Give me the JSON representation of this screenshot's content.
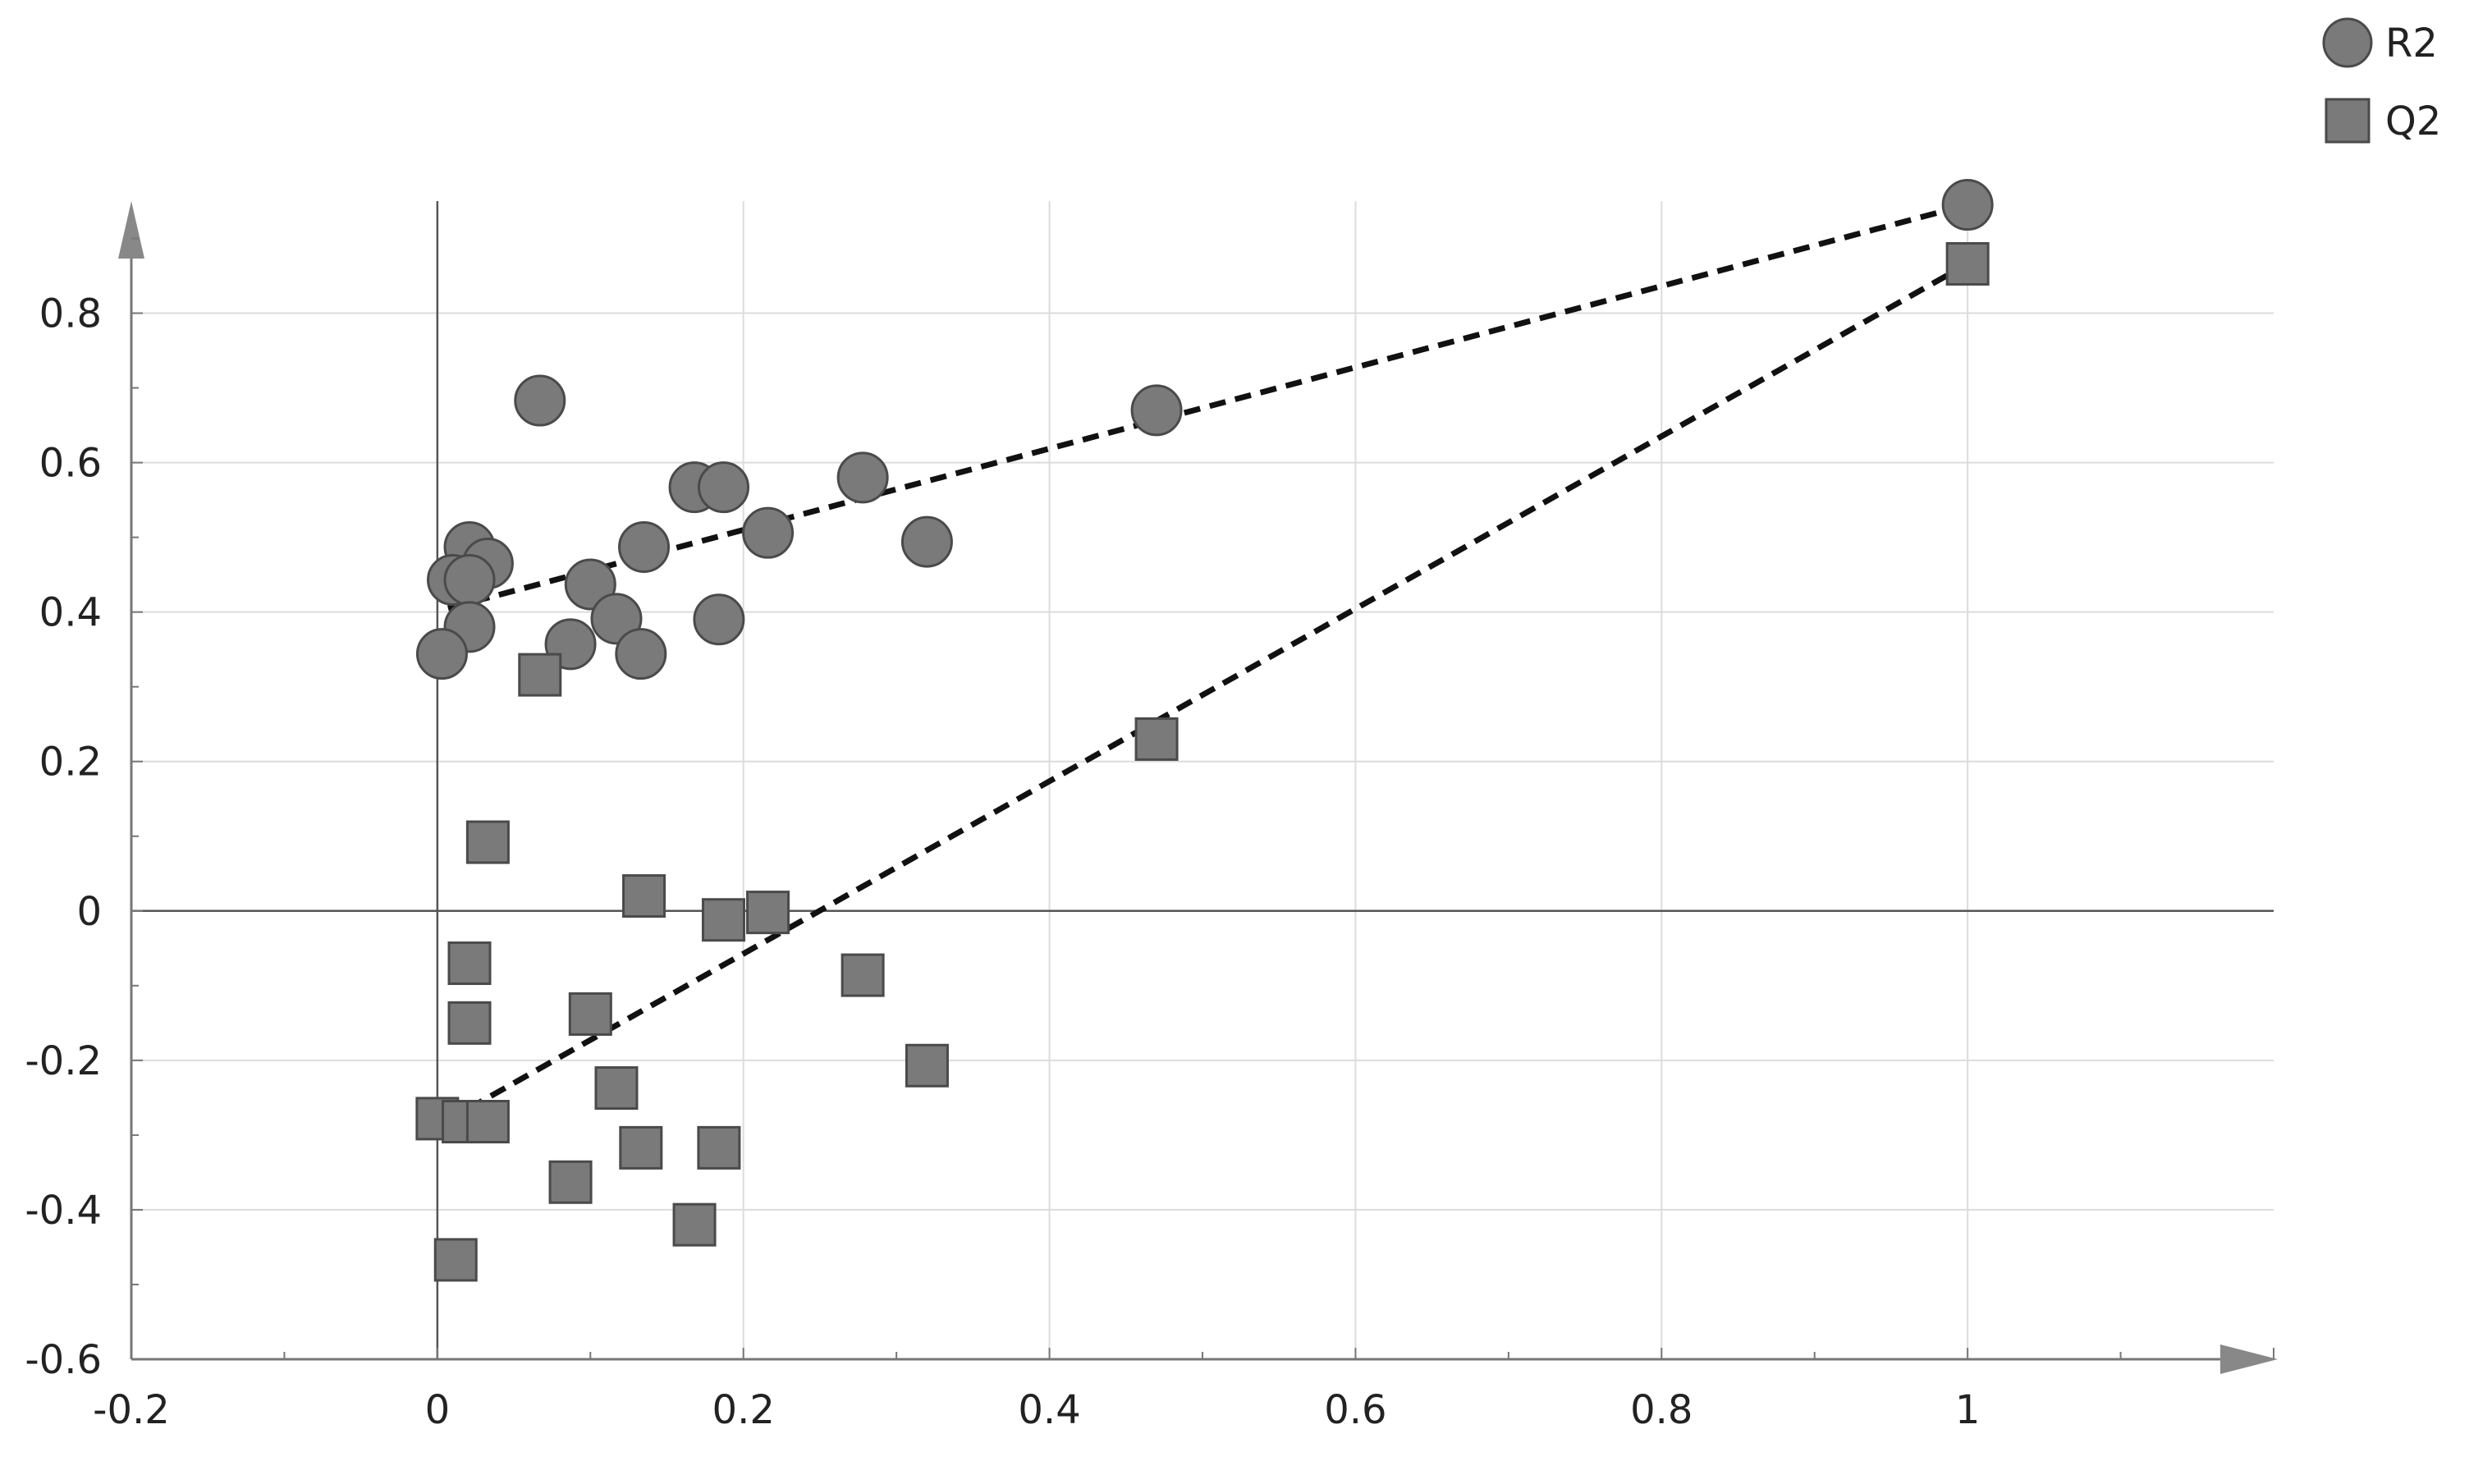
{
  "chart_data": {
    "type": "scatter",
    "title": "",
    "xlabel": "",
    "ylabel": "",
    "xlim": [
      -0.2,
      1.2
    ],
    "ylim": [
      -0.6,
      0.95
    ],
    "x_ticks": [
      -0.2,
      0,
      0.2,
      0.4,
      0.6,
      0.8,
      1
    ],
    "x_tick_labels": [
      "-0.2",
      "0",
      "0.2",
      "0.4",
      "0.6",
      "0.8",
      "1"
    ],
    "y_ticks": [
      -0.6,
      -0.4,
      -0.2,
      0,
      0.2,
      0.4,
      0.6,
      0.8
    ],
    "y_tick_labels": [
      "-0.6",
      "-0.4",
      "-0.2",
      "0",
      "0.2",
      "0.4",
      "0.6",
      "0.8"
    ],
    "grid": true,
    "legend_position": "top-right",
    "series": [
      {
        "name": "R2",
        "marker": "circle",
        "color": "#7a7a7a",
        "points": [
          [
            1.0,
            0.945
          ],
          [
            0.47,
            0.67
          ],
          [
            0.067,
            0.683
          ],
          [
            0.168,
            0.567
          ],
          [
            0.187,
            0.567
          ],
          [
            0.278,
            0.58
          ],
          [
            0.216,
            0.506
          ],
          [
            0.32,
            0.494
          ],
          [
            0.135,
            0.487
          ],
          [
            0.021,
            0.487
          ],
          [
            0.033,
            0.465
          ],
          [
            0.01,
            0.443
          ],
          [
            0.021,
            0.443
          ],
          [
            0.1,
            0.437
          ],
          [
            0.021,
            0.38
          ],
          [
            0.117,
            0.391
          ],
          [
            0.184,
            0.39
          ],
          [
            0.087,
            0.357
          ],
          [
            0.003,
            0.344
          ],
          [
            0.133,
            0.344
          ]
        ],
        "trend_line": [
          [
            0.007,
            0.405
          ],
          [
            1.0,
            0.945
          ]
        ]
      },
      {
        "name": "Q2",
        "marker": "square",
        "color": "#7a7a7a",
        "points": [
          [
            1.0,
            0.866
          ],
          [
            0.47,
            0.23
          ],
          [
            0.067,
            0.316
          ],
          [
            0.033,
            0.092
          ],
          [
            0.135,
            0.02
          ],
          [
            0.187,
            -0.012
          ],
          [
            0.216,
            -0.002
          ],
          [
            0.021,
            -0.07
          ],
          [
            0.278,
            -0.086
          ],
          [
            0.021,
            -0.15
          ],
          [
            0.1,
            -0.138
          ],
          [
            0.32,
            -0.207
          ],
          [
            0.117,
            -0.237
          ],
          [
            0.0,
            -0.278
          ],
          [
            0.017,
            -0.282
          ],
          [
            0.033,
            -0.282
          ],
          [
            0.133,
            -0.317
          ],
          [
            0.184,
            -0.317
          ],
          [
            0.087,
            -0.363
          ],
          [
            0.168,
            -0.42
          ],
          [
            0.012,
            -0.467
          ]
        ],
        "trend_line": [
          [
            0.02,
            -0.265
          ],
          [
            1.0,
            0.866
          ]
        ]
      }
    ]
  }
}
